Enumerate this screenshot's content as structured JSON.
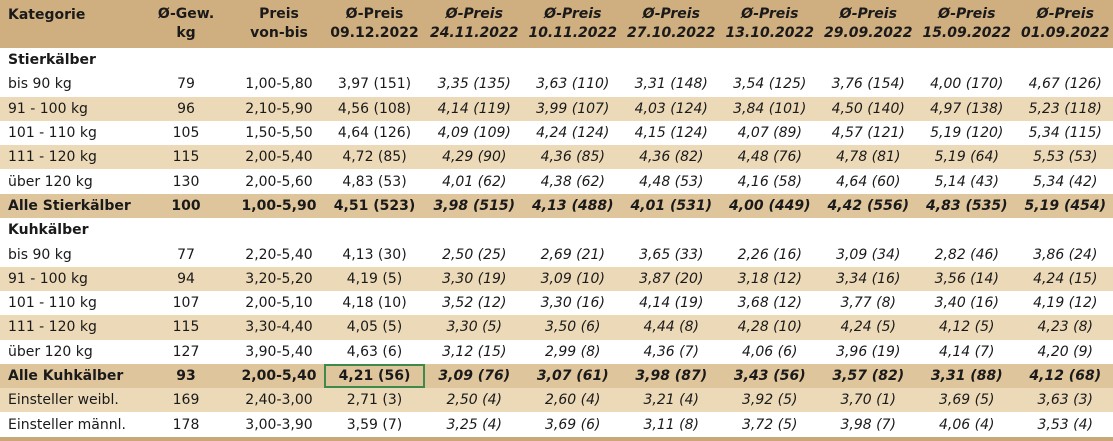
{
  "headers": [
    {
      "line1": "Kategorie",
      "line2": ""
    },
    {
      "line1": "Ø-Gew.",
      "line2": "kg"
    },
    {
      "line1": "Preis",
      "line2": "von-bis"
    },
    {
      "line1": "Ø-Preis",
      "line2": "09.12.2022"
    },
    {
      "line1": "Ø-Preis",
      "line2": "24.11.2022"
    },
    {
      "line1": "Ø-Preis",
      "line2": "10.11.2022"
    },
    {
      "line1": "Ø-Preis",
      "line2": "27.10.2022"
    },
    {
      "line1": "Ø-Preis",
      "line2": "13.10.2022"
    },
    {
      "line1": "Ø-Preis",
      "line2": "29.09.2022"
    },
    {
      "line1": "Ø-Preis",
      "line2": "15.09.2022"
    },
    {
      "line1": "Ø-Preis",
      "line2": "01.09.2022"
    }
  ],
  "sections": [
    {
      "title": "Stierkälber",
      "rows": [
        {
          "label": "bis 90 kg",
          "weight": "79",
          "range": "1,00-5,80",
          "current": "3,97 (151)",
          "history": [
            "3,35 (135)",
            "3,63 (110)",
            "3,31 (148)",
            "3,54 (125)",
            "3,76 (154)",
            "4,00 (170)",
            "4,67 (126)"
          ]
        },
        {
          "label": "91 - 100 kg",
          "weight": "96",
          "range": "2,10-5,90",
          "current": "4,56 (108)",
          "history": [
            "4,14 (119)",
            "3,99 (107)",
            "4,03 (124)",
            "3,84 (101)",
            "4,50 (140)",
            "4,97 (138)",
            "5,23 (118)"
          ]
        },
        {
          "label": "101 - 110 kg",
          "weight": "105",
          "range": "1,50-5,50",
          "current": "4,64 (126)",
          "history": [
            "4,09 (109)",
            "4,24 (124)",
            "4,15 (124)",
            "4,07 (89)",
            "4,57 (121)",
            "5,19 (120)",
            "5,34 (115)"
          ]
        },
        {
          "label": "111 - 120 kg",
          "weight": "115",
          "range": "2,00-5,40",
          "current": "4,72 (85)",
          "history": [
            "4,29 (90)",
            "4,36 (85)",
            "4,36 (82)",
            "4,48 (76)",
            "4,78 (81)",
            "5,19 (64)",
            "5,53 (53)"
          ]
        },
        {
          "label": "über 120 kg",
          "weight": "130",
          "range": "2,00-5,60",
          "current": "4,83 (53)",
          "history": [
            "4,01 (62)",
            "4,38 (62)",
            "4,48 (53)",
            "4,16 (58)",
            "4,64 (60)",
            "5,14 (43)",
            "5,34 (42)"
          ]
        }
      ],
      "total": {
        "label": "Alle Stierkälber",
        "weight": "100",
        "range": "1,00-5,90",
        "current": "4,51 (523)",
        "history": [
          "3,98 (515)",
          "4,13 (488)",
          "4,01 (531)",
          "4,00 (449)",
          "4,42 (556)",
          "4,83 (535)",
          "5,19 (454)"
        ]
      }
    },
    {
      "title": "Kuhkälber",
      "rows": [
        {
          "label": "bis 90 kg",
          "weight": "77",
          "range": "2,20-5,40",
          "current": "4,13 (30)",
          "history": [
            "2,50 (25)",
            "2,69 (21)",
            "3,65 (33)",
            "2,26 (16)",
            "3,09 (34)",
            "2,82 (46)",
            "3,86 (24)"
          ]
        },
        {
          "label": "91 - 100 kg",
          "weight": "94",
          "range": "3,20-5,20",
          "current": "4,19 (5)",
          "history": [
            "3,30 (19)",
            "3,09 (10)",
            "3,87 (20)",
            "3,18 (12)",
            "3,34 (16)",
            "3,56 (14)",
            "4,24 (15)"
          ]
        },
        {
          "label": "101 - 110 kg",
          "weight": "107",
          "range": "2,00-5,10",
          "current": "4,18 (10)",
          "history": [
            "3,52 (12)",
            "3,30 (16)",
            "4,14 (19)",
            "3,68 (12)",
            "3,77 (8)",
            "3,40 (16)",
            "4,19 (12)"
          ]
        },
        {
          "label": "111 - 120 kg",
          "weight": "115",
          "range": "3,30-4,40",
          "current": "4,05 (5)",
          "history": [
            "3,30 (5)",
            "3,50 (6)",
            "4,44 (8)",
            "4,28 (10)",
            "4,24 (5)",
            "4,12 (5)",
            "4,23 (8)"
          ]
        },
        {
          "label": "über 120 kg",
          "weight": "127",
          "range": "3,90-5,40",
          "current": "4,63 (6)",
          "history": [
            "3,12 (15)",
            "2,99 (8)",
            "4,36 (7)",
            "4,06 (6)",
            "3,96 (19)",
            "4,14 (7)",
            "4,20 (9)"
          ]
        }
      ],
      "total": {
        "label": "Alle Kuhkälber",
        "weight": "93",
        "range": "2,00-5,40",
        "current": "4,21 (56)",
        "history": [
          "3,09 (76)",
          "3,07 (61)",
          "3,98 (87)",
          "3,43 (56)",
          "3,57 (82)",
          "3,31 (88)",
          "4,12 (68)"
        ]
      }
    }
  ],
  "extra_rows": [
    {
      "label": "Einsteller weibl.",
      "weight": "169",
      "range": "2,40-3,00",
      "current": "2,71 (3)",
      "history": [
        "2,50 (4)",
        "2,60 (4)",
        "3,21 (4)",
        "3,92 (5)",
        "3,70 (1)",
        "3,69 (5)",
        "3,63 (3)"
      ]
    },
    {
      "label": "Einsteller männl.",
      "weight": "178",
      "range": "3,00-3,90",
      "current": "3,59 (7)",
      "history": [
        "3,25 (4)",
        "3,69 (6)",
        "3,11 (8)",
        "3,72 (5)",
        "3,98 (7)",
        "4,06 (4)",
        "3,53 (4)"
      ]
    }
  ],
  "colors": {
    "header_bg": "#cfae80",
    "stripe_bg": "#ecd9b8",
    "total_bg": "#dfc59c",
    "selection_outline": "#3d8a4c"
  }
}
